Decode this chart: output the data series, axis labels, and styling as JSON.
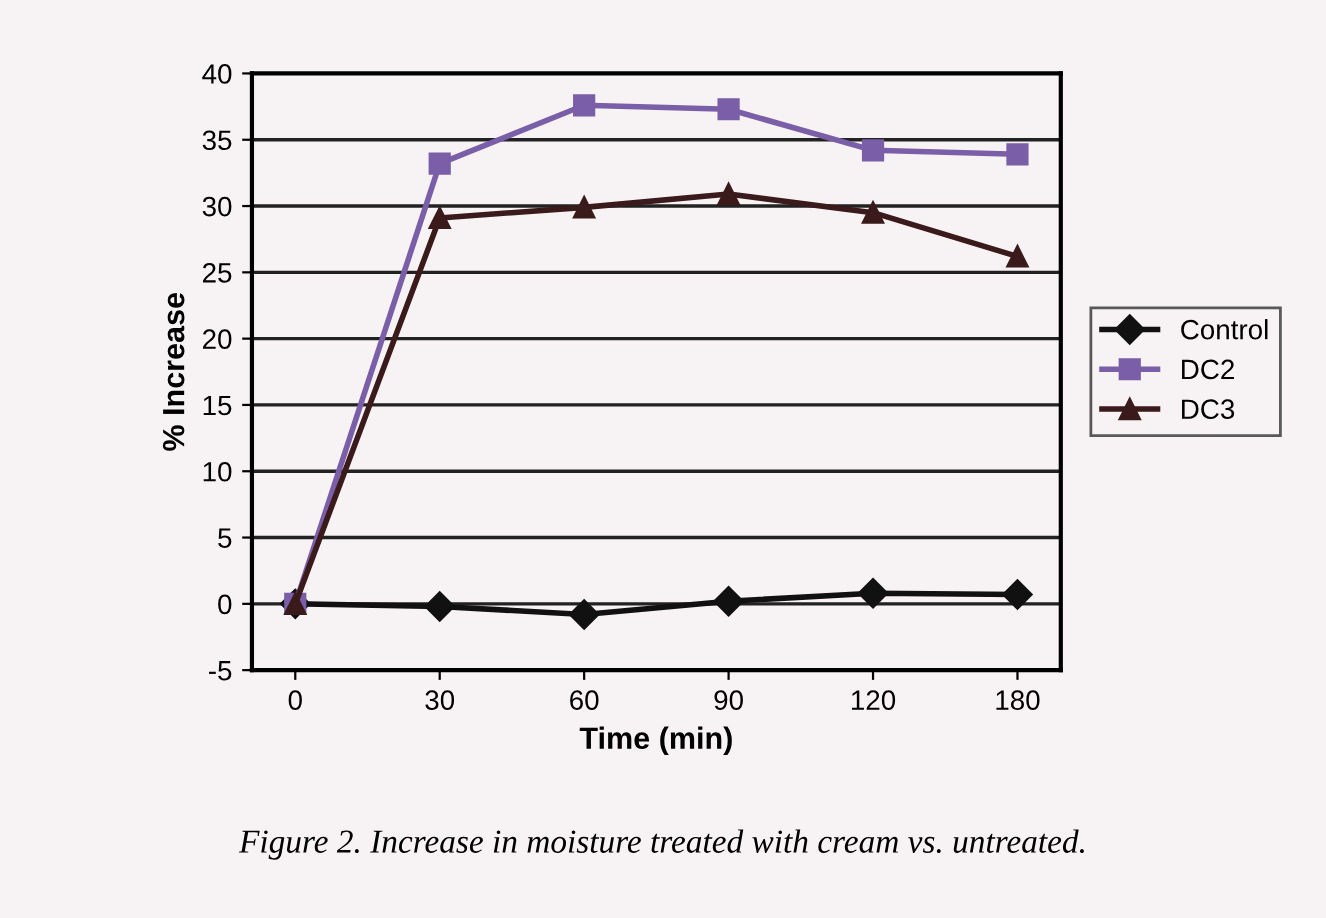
{
  "chart_data": {
    "type": "line",
    "xlabel": "Time (min)",
    "ylabel": "% Increase",
    "categories": [
      "0",
      "30",
      "60",
      "90",
      "120",
      "180"
    ],
    "series": [
      {
        "name": "Control",
        "color": "#111111",
        "marker": "diamond",
        "values": [
          0,
          -0.2,
          -0.8,
          0.2,
          0.8,
          0.7
        ]
      },
      {
        "name": "DC2",
        "color": "#7b5ea8",
        "marker": "square",
        "values": [
          0,
          33.2,
          37.6,
          37.3,
          34.2,
          33.9
        ]
      },
      {
        "name": "DC3",
        "color": "#3a1a1a",
        "marker": "triangle",
        "values": [
          0,
          29.1,
          29.9,
          30.9,
          29.5,
          26.2
        ]
      }
    ],
    "ylim": [
      -5,
      40
    ],
    "yticks": [
      -5,
      0,
      5,
      10,
      15,
      20,
      25,
      30,
      35,
      40
    ],
    "grid": "y",
    "legend": "right",
    "annotations": [
      "Figure 2. Increase in moisture treated with cream vs. untreated."
    ]
  }
}
